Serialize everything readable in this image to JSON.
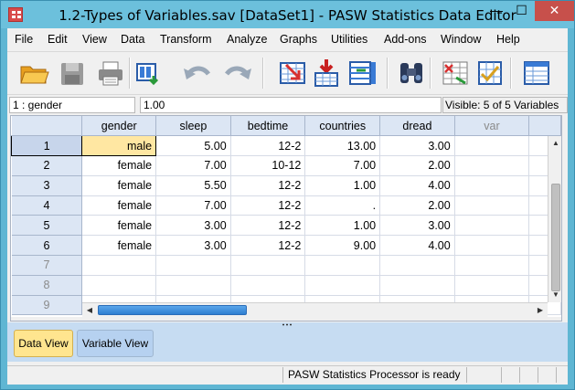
{
  "window": {
    "title": "1.2-Types of Variables.sav [DataSet1] - PASW Statistics Data Editor",
    "minimize": "—",
    "maximize": "☐",
    "close": "✕"
  },
  "menu": [
    "File",
    "Edit",
    "View",
    "Data",
    "Transform",
    "Analyze",
    "Graphs",
    "Utilities",
    "Add-ons",
    "Window",
    "Help"
  ],
  "toolbar": {
    "icons": [
      "open-folder-icon",
      "save-icon",
      "print-icon",
      "dialog-recall-icon",
      "undo-icon",
      "redo-icon",
      "goto-case-icon",
      "insert-cases-icon",
      "insert-variable-icon",
      "find-icon",
      "split-file-icon",
      "select-cases-icon",
      "value-labels-icon"
    ]
  },
  "cell_editor": {
    "ref": "1 : gender",
    "value": "1.00",
    "visible": "Visible: 5 of 5 Variables"
  },
  "grid": {
    "columns": [
      "gender",
      "sleep",
      "bedtime",
      "countries",
      "dread",
      "var"
    ],
    "rows": [
      {
        "n": "1",
        "cells": [
          "male",
          "5.00",
          "12-2",
          "13.00",
          "3.00",
          ""
        ]
      },
      {
        "n": "2",
        "cells": [
          "female",
          "7.00",
          "10-12",
          "7.00",
          "2.00",
          ""
        ]
      },
      {
        "n": "3",
        "cells": [
          "female",
          "5.50",
          "12-2",
          "1.00",
          "4.00",
          ""
        ]
      },
      {
        "n": "4",
        "cells": [
          "female",
          "7.00",
          "12-2",
          ".",
          "2.00",
          ""
        ]
      },
      {
        "n": "5",
        "cells": [
          "female",
          "3.00",
          "12-2",
          "1.00",
          "3.00",
          ""
        ]
      },
      {
        "n": "6",
        "cells": [
          "female",
          "3.00",
          "12-2",
          "9.00",
          "4.00",
          ""
        ]
      },
      {
        "n": "7",
        "cells": [
          "",
          "",
          "",
          "",
          "",
          ""
        ]
      },
      {
        "n": "8",
        "cells": [
          "",
          "",
          "",
          "",
          "",
          ""
        ]
      },
      {
        "n": "9",
        "cells": [
          "",
          "",
          "",
          "",
          "",
          ""
        ]
      }
    ]
  },
  "tabs": {
    "data_view": "Data View",
    "variable_view": "Variable View"
  },
  "status": {
    "processor": "PASW Statistics Processor is ready"
  },
  "colors": {
    "title_bar": "#6cc0dc",
    "close_button": "#c7504b",
    "active_tab": "#ffe58f",
    "selected_cell": "#ffe7a2",
    "header_bg": "#dce6f4"
  }
}
